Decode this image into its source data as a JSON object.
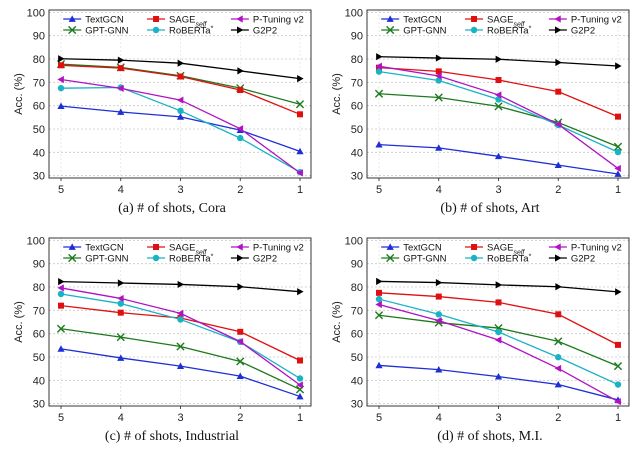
{
  "colors": {
    "TextGCN": "#1f2fd6",
    "GPT-GNN": "#1d7a1d",
    "SAGE_self": "#e01010",
    "RoBERTa*": "#19b3c4",
    "P-Tuning v2": "#b012c4",
    "G2P2": "#000000"
  },
  "chart_data": [
    {
      "type": "line",
      "caption": "(a)  # of shots, Cora",
      "ylabel": "Acc. (%)",
      "xlabel": "",
      "categories": [
        "5",
        "4",
        "3",
        "2",
        "1"
      ],
      "yticks": [
        30,
        40,
        50,
        60,
        70,
        80,
        90,
        100
      ],
      "ylim": [
        29,
        101
      ],
      "grid": true,
      "legend": "top",
      "series": [
        {
          "name": "TextGCN",
          "marker": "triangle",
          "values": [
            59.8,
            57.3,
            55.2,
            49.5,
            40.4
          ]
        },
        {
          "name": "GPT-GNN",
          "marker": "x",
          "values": [
            77.8,
            76.4,
            72.8,
            67.5,
            60.6
          ]
        },
        {
          "name": "SAGE_self",
          "marker": "square",
          "values": [
            77.3,
            76.1,
            72.5,
            66.7,
            56.3
          ]
        },
        {
          "name": "RoBERTa*",
          "marker": "circle",
          "values": [
            67.5,
            67.8,
            57.8,
            46.1,
            31.5
          ]
        },
        {
          "name": "P-Tuning v2",
          "marker": "tri-left",
          "values": [
            71.2,
            67.4,
            62.4,
            50.1,
            31.2
          ]
        },
        {
          "name": "G2P2",
          "marker": "tri-right",
          "values": [
            80.1,
            79.5,
            78.2,
            74.9,
            71.6
          ]
        }
      ]
    },
    {
      "type": "line",
      "caption": "(b)  # of shots, Art",
      "ylabel": "Acc. (%)",
      "xlabel": "",
      "categories": [
        "5",
        "4",
        "3",
        "2",
        "1"
      ],
      "yticks": [
        30,
        40,
        50,
        60,
        70,
        80,
        90,
        100
      ],
      "ylim": [
        29,
        101
      ],
      "grid": true,
      "legend": "top",
      "series": [
        {
          "name": "TextGCN",
          "marker": "triangle",
          "values": [
            43.3,
            41.9,
            38.3,
            34.5,
            30.7
          ]
        },
        {
          "name": "GPT-GNN",
          "marker": "x",
          "values": [
            65.1,
            63.5,
            59.7,
            52.8,
            42.4
          ]
        },
        {
          "name": "SAGE_self",
          "marker": "square",
          "values": [
            76.3,
            74.7,
            71.0,
            66.0,
            55.3
          ]
        },
        {
          "name": "RoBERTa*",
          "marker": "circle",
          "values": [
            74.6,
            70.8,
            62.7,
            51.7,
            40.1
          ]
        },
        {
          "name": "P-Tuning v2",
          "marker": "tri-left",
          "values": [
            76.9,
            72.7,
            64.6,
            52.0,
            33.1
          ]
        },
        {
          "name": "G2P2",
          "marker": "tri-right",
          "values": [
            81.0,
            80.4,
            79.9,
            78.5,
            77.0
          ]
        }
      ]
    },
    {
      "type": "line",
      "caption": "(c)  # of shots, Industrial",
      "ylabel": "Acc. (%)",
      "xlabel": "",
      "categories": [
        "5",
        "4",
        "3",
        "2",
        "1"
      ],
      "yticks": [
        30,
        40,
        50,
        60,
        70,
        80,
        90,
        100
      ],
      "ylim": [
        29,
        101
      ],
      "grid": true,
      "legend": "top",
      "series": [
        {
          "name": "TextGCN",
          "marker": "triangle",
          "values": [
            53.5,
            49.6,
            46.1,
            41.8,
            33.1
          ]
        },
        {
          "name": "GPT-GNN",
          "marker": "x",
          "values": [
            62.1,
            58.5,
            54.5,
            48.1,
            36.1
          ]
        },
        {
          "name": "SAGE_self",
          "marker": "square",
          "values": [
            72.0,
            69.0,
            66.7,
            60.8,
            48.5
          ]
        },
        {
          "name": "RoBERTa*",
          "marker": "circle",
          "values": [
            77.0,
            72.9,
            66.1,
            56.5,
            40.8
          ]
        },
        {
          "name": "P-Tuning v2",
          "marker": "tri-left",
          "values": [
            79.6,
            75.1,
            68.7,
            56.6,
            38.0
          ]
        },
        {
          "name": "G2P2",
          "marker": "tri-right",
          "values": [
            82.3,
            81.7,
            81.1,
            80.1,
            78.0
          ]
        }
      ]
    },
    {
      "type": "line",
      "caption": "(d)  # of shots, M.I.",
      "ylabel": "Acc. (%)",
      "xlabel": "",
      "categories": [
        "5",
        "4",
        "3",
        "2",
        "1"
      ],
      "yticks": [
        30,
        40,
        50,
        60,
        70,
        80,
        90,
        100
      ],
      "ylim": [
        29,
        101
      ],
      "grid": true,
      "legend": "top",
      "series": [
        {
          "name": "TextGCN",
          "marker": "triangle",
          "values": [
            46.4,
            44.6,
            41.6,
            38.2,
            31.6
          ]
        },
        {
          "name": "GPT-GNN",
          "marker": "x",
          "values": [
            67.9,
            64.7,
            62.4,
            56.7,
            46.1
          ]
        },
        {
          "name": "SAGE_self",
          "marker": "square",
          "values": [
            77.5,
            75.9,
            73.4,
            68.3,
            55.2
          ]
        },
        {
          "name": "RoBERTa*",
          "marker": "circle",
          "values": [
            74.8,
            68.3,
            60.7,
            49.9,
            38.2
          ]
        },
        {
          "name": "P-Tuning v2",
          "marker": "tri-left",
          "values": [
            72.5,
            65.6,
            57.3,
            45.1,
            30.9
          ]
        },
        {
          "name": "G2P2",
          "marker": "tri-right",
          "values": [
            82.4,
            81.9,
            80.9,
            80.1,
            77.9
          ]
        }
      ]
    }
  ]
}
